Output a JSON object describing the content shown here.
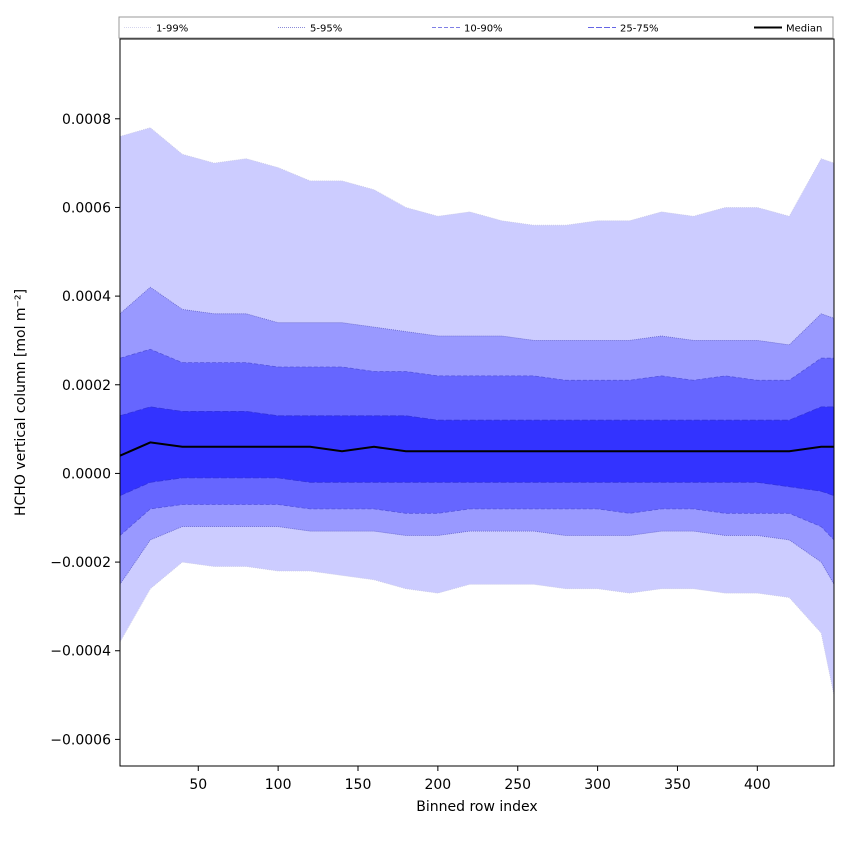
{
  "chart_data": {
    "type": "area",
    "xlabel": "Binned row index",
    "ylabel": "HCHO vertical column [mol m⁻²]",
    "xlim": [
      1,
      448
    ],
    "ylim": [
      -0.00066,
      0.00098
    ],
    "xticks": [
      50,
      100,
      150,
      200,
      250,
      300,
      350,
      400
    ],
    "yticks": [
      -0.0006,
      -0.0004,
      -0.0002,
      0.0,
      0.0002,
      0.0004,
      0.0006,
      0.0008
    ],
    "ytick_labels": [
      "−0.0006",
      "−0.0004",
      "−0.0002",
      "0.0000",
      "0.0002",
      "0.0004",
      "0.0006",
      "0.0008"
    ],
    "grid": false,
    "legend_position": "top",
    "x": [
      1,
      20,
      40,
      60,
      80,
      100,
      120,
      140,
      160,
      180,
      200,
      220,
      240,
      260,
      280,
      300,
      320,
      340,
      360,
      380,
      400,
      420,
      440,
      448
    ],
    "bands": [
      {
        "name": "1-99%",
        "color": "#ccccff",
        "line_color": "#c8c8e8",
        "dash": "1,1",
        "lower": [
          -0.00038,
          -0.00026,
          -0.0002,
          -0.00021,
          -0.00021,
          -0.00022,
          -0.00022,
          -0.00023,
          -0.00024,
          -0.00026,
          -0.00027,
          -0.00025,
          -0.00025,
          -0.00025,
          -0.00026,
          -0.00026,
          -0.00027,
          -0.00026,
          -0.00026,
          -0.00027,
          -0.00027,
          -0.00028,
          -0.00036,
          -0.0005
        ],
        "upper": [
          0.00076,
          0.00078,
          0.00072,
          0.0007,
          0.00071,
          0.00069,
          0.00066,
          0.00066,
          0.00064,
          0.0006,
          0.00058,
          0.00059,
          0.00057,
          0.00056,
          0.00056,
          0.00057,
          0.00057,
          0.00059,
          0.00058,
          0.0006,
          0.0006,
          0.00058,
          0.00071,
          0.0007
        ]
      },
      {
        "name": "5-95%",
        "color": "#9999ff",
        "line_color": "#6666cc",
        "dash": "1,1",
        "lower": [
          -0.00025,
          -0.00015,
          -0.00012,
          -0.00012,
          -0.00012,
          -0.00012,
          -0.00013,
          -0.00013,
          -0.00013,
          -0.00014,
          -0.00014,
          -0.00013,
          -0.00013,
          -0.00013,
          -0.00014,
          -0.00014,
          -0.00014,
          -0.00013,
          -0.00013,
          -0.00014,
          -0.00014,
          -0.00015,
          -0.0002,
          -0.00025
        ],
        "upper": [
          0.00036,
          0.00042,
          0.00037,
          0.00036,
          0.00036,
          0.00034,
          0.00034,
          0.00034,
          0.00033,
          0.00032,
          0.00031,
          0.00031,
          0.00031,
          0.0003,
          0.0003,
          0.0003,
          0.0003,
          0.00031,
          0.0003,
          0.0003,
          0.0003,
          0.00029,
          0.00036,
          0.00035
        ]
      },
      {
        "name": "10-90%",
        "color": "#6666ff",
        "line_color": "#5555dd",
        "dash": "4,2",
        "lower": [
          -0.00014,
          -8e-05,
          -7e-05,
          -7e-05,
          -7e-05,
          -7e-05,
          -8e-05,
          -8e-05,
          -8e-05,
          -9e-05,
          -9e-05,
          -8e-05,
          -8e-05,
          -8e-05,
          -8e-05,
          -8e-05,
          -9e-05,
          -8e-05,
          -8e-05,
          -9e-05,
          -9e-05,
          -9e-05,
          -0.00012,
          -0.00015
        ],
        "upper": [
          0.00026,
          0.00028,
          0.00025,
          0.00025,
          0.00025,
          0.00024,
          0.00024,
          0.00024,
          0.00023,
          0.00023,
          0.00022,
          0.00022,
          0.00022,
          0.00022,
          0.00021,
          0.00021,
          0.00021,
          0.00022,
          0.00021,
          0.00022,
          0.00021,
          0.00021,
          0.00026,
          0.00026
        ]
      },
      {
        "name": "25-75%",
        "color": "#3333ff",
        "line_color": "#3333dd",
        "dash": "6,2",
        "lower": [
          -5e-05,
          -2e-05,
          -1e-05,
          -1e-05,
          -1e-05,
          -1e-05,
          -2e-05,
          -2e-05,
          -2e-05,
          -2e-05,
          -2e-05,
          -2e-05,
          -2e-05,
          -2e-05,
          -2e-05,
          -2e-05,
          -2e-05,
          -2e-05,
          -2e-05,
          -2e-05,
          -2e-05,
          -3e-05,
          -4e-05,
          -5e-05
        ],
        "upper": [
          0.00013,
          0.00015,
          0.00014,
          0.00014,
          0.00014,
          0.00013,
          0.00013,
          0.00013,
          0.00013,
          0.00013,
          0.00012,
          0.00012,
          0.00012,
          0.00012,
          0.00012,
          0.00012,
          0.00012,
          0.00012,
          0.00012,
          0.00012,
          0.00012,
          0.00012,
          0.00015,
          0.00015
        ]
      }
    ],
    "median": {
      "name": "Median",
      "color": "#000000",
      "values": [
        4e-05,
        7e-05,
        6e-05,
        6e-05,
        6e-05,
        6e-05,
        6e-05,
        5e-05,
        6e-05,
        5e-05,
        5e-05,
        5e-05,
        5e-05,
        5e-05,
        5e-05,
        5e-05,
        5e-05,
        5e-05,
        5e-05,
        5e-05,
        5e-05,
        5e-05,
        6e-05,
        6e-05
      ]
    }
  }
}
